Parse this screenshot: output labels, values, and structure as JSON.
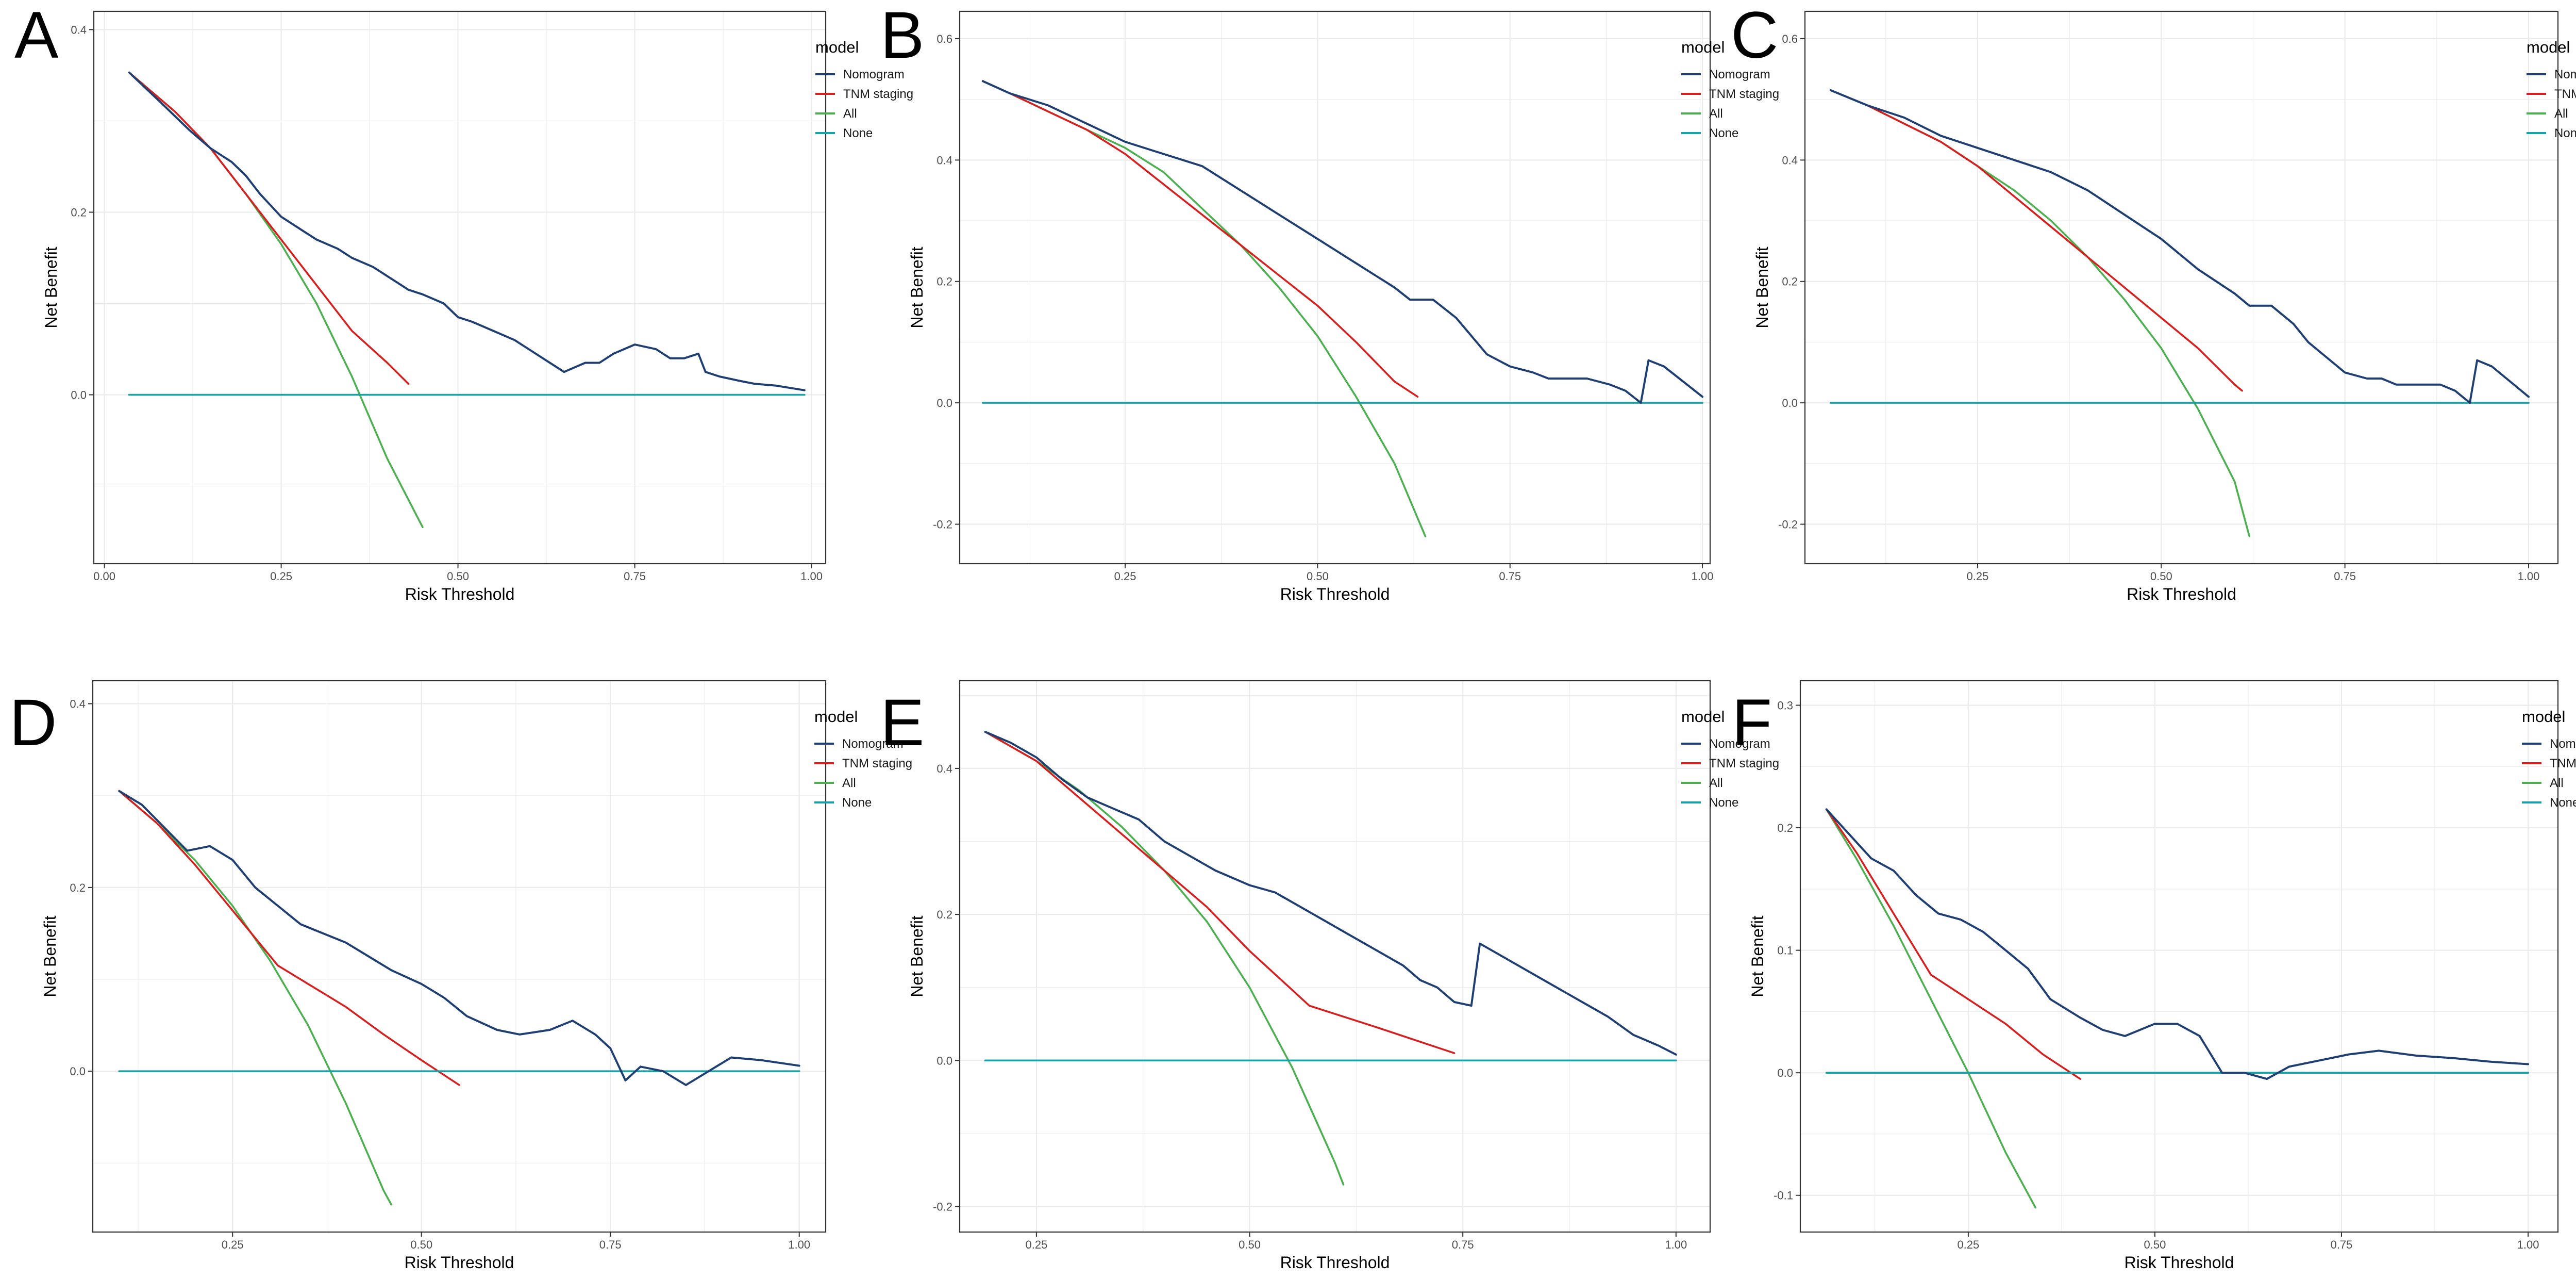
{
  "colors": {
    "Nomogram": "#1f3f73",
    "TNM staging": "#d62020",
    "All": "#4caf50",
    "None": "#17a2a8",
    "grid": "#ebebeb",
    "frame": "#333333"
  },
  "chart_data": [
    {
      "type": "line",
      "panel": "A",
      "xlabel": "Risk Threshold",
      "ylabel": "Net Benefit",
      "xlim": [
        -0.015,
        1.02
      ],
      "ylim": [
        -0.185,
        0.42
      ],
      "xticks": [
        0.0,
        0.25,
        0.5,
        0.75,
        1.0
      ],
      "xtick_labels": [
        "0.00",
        "0.25",
        "0.50",
        "0.75",
        "1.00"
      ],
      "yticks": [
        0.0,
        0.2,
        0.4
      ],
      "ytick_labels": [
        "0.0",
        "0.2",
        "0.4"
      ],
      "legend": {
        "title": "model",
        "entries": [
          "Nomogram",
          "TNM staging",
          "All",
          "None"
        ]
      },
      "series": [
        {
          "name": "Nomogram",
          "x": [
            0.035,
            0.08,
            0.12,
            0.15,
            0.18,
            0.2,
            0.22,
            0.25,
            0.28,
            0.3,
            0.33,
            0.35,
            0.38,
            0.4,
            0.43,
            0.45,
            0.48,
            0.5,
            0.52,
            0.55,
            0.58,
            0.6,
            0.62,
            0.65,
            0.68,
            0.7,
            0.72,
            0.75,
            0.78,
            0.8,
            0.82,
            0.84,
            0.85,
            0.87,
            0.9,
            0.92,
            0.95,
            0.99
          ],
          "y": [
            0.353,
            0.32,
            0.29,
            0.27,
            0.255,
            0.24,
            0.22,
            0.195,
            0.18,
            0.17,
            0.16,
            0.15,
            0.14,
            0.13,
            0.115,
            0.11,
            0.1,
            0.085,
            0.08,
            0.07,
            0.06,
            0.05,
            0.04,
            0.025,
            0.035,
            0.035,
            0.045,
            0.055,
            0.05,
            0.04,
            0.04,
            0.045,
            0.025,
            0.02,
            0.015,
            0.012,
            0.01,
            0.005
          ]
        },
        {
          "name": "TNM staging",
          "x": [
            0.035,
            0.1,
            0.15,
            0.2,
            0.25,
            0.3,
            0.35,
            0.4,
            0.43
          ],
          "y": [
            0.353,
            0.31,
            0.27,
            0.22,
            0.17,
            0.12,
            0.07,
            0.035,
            0.012
          ]
        },
        {
          "name": "All",
          "x": [
            0.035,
            0.1,
            0.15,
            0.2,
            0.25,
            0.3,
            0.35,
            0.4,
            0.45
          ],
          "y": [
            0.353,
            0.31,
            0.27,
            0.22,
            0.165,
            0.1,
            0.02,
            -0.07,
            -0.145
          ]
        },
        {
          "name": "None",
          "x": [
            0.035,
            0.99
          ],
          "y": [
            0.0,
            0.0
          ]
        }
      ]
    },
    {
      "type": "line",
      "panel": "B",
      "xlabel": "Risk Threshold",
      "ylabel": "Net Benefit",
      "xlim": [
        0.035,
        1.01
      ],
      "ylim": [
        -0.265,
        0.645
      ],
      "xticks": [
        0.25,
        0.5,
        0.75,
        1.0
      ],
      "xtick_labels": [
        "0.25",
        "0.50",
        "0.75",
        "1.00"
      ],
      "yticks": [
        -0.2,
        0.0,
        0.2,
        0.4,
        0.6
      ],
      "ytick_labels": [
        "-0.2",
        "0.0",
        "0.2",
        "0.4",
        "0.6"
      ],
      "legend": {
        "title": "model",
        "entries": [
          "Nomogram",
          "TNM staging",
          "All",
          "None"
        ]
      },
      "series": [
        {
          "name": "Nomogram",
          "x": [
            0.065,
            0.1,
            0.15,
            0.2,
            0.25,
            0.3,
            0.35,
            0.4,
            0.45,
            0.5,
            0.55,
            0.6,
            0.62,
            0.65,
            0.68,
            0.7,
            0.72,
            0.75,
            0.78,
            0.8,
            0.82,
            0.85,
            0.88,
            0.9,
            0.92,
            0.93,
            0.95,
            0.97,
            1.0
          ],
          "y": [
            0.53,
            0.51,
            0.49,
            0.46,
            0.43,
            0.41,
            0.39,
            0.35,
            0.31,
            0.27,
            0.23,
            0.19,
            0.17,
            0.17,
            0.14,
            0.11,
            0.08,
            0.06,
            0.05,
            0.04,
            0.04,
            0.04,
            0.03,
            0.02,
            0.0,
            0.07,
            0.06,
            0.04,
            0.01
          ]
        },
        {
          "name": "TNM staging",
          "x": [
            0.065,
            0.1,
            0.15,
            0.2,
            0.25,
            0.3,
            0.35,
            0.4,
            0.45,
            0.5,
            0.55,
            0.6,
            0.63
          ],
          "y": [
            0.53,
            0.51,
            0.48,
            0.45,
            0.41,
            0.36,
            0.31,
            0.26,
            0.21,
            0.16,
            0.1,
            0.035,
            0.01
          ]
        },
        {
          "name": "All",
          "x": [
            0.065,
            0.1,
            0.15,
            0.2,
            0.25,
            0.3,
            0.35,
            0.4,
            0.45,
            0.5,
            0.55,
            0.6,
            0.64
          ],
          "y": [
            0.53,
            0.51,
            0.48,
            0.45,
            0.42,
            0.38,
            0.32,
            0.26,
            0.19,
            0.11,
            0.01,
            -0.1,
            -0.22
          ]
        },
        {
          "name": "None",
          "x": [
            0.065,
            1.0
          ],
          "y": [
            0.0,
            0.0
          ]
        }
      ]
    },
    {
      "type": "line",
      "panel": "C",
      "xlabel": "Risk Threshold",
      "ylabel": "Net Benefit",
      "xlim": [
        0.015,
        1.04
      ],
      "ylim": [
        -0.265,
        0.645
      ],
      "xticks": [
        0.25,
        0.5,
        0.75,
        1.0
      ],
      "xtick_labels": [
        "0.25",
        "0.50",
        "0.75",
        "1.00"
      ],
      "yticks": [
        -0.2,
        0.0,
        0.2,
        0.4,
        0.6
      ],
      "ytick_labels": [
        "-0.2",
        "0.0",
        "0.2",
        "0.4",
        "0.6"
      ],
      "legend": {
        "title": "model",
        "entries": [
          "Nomogram",
          "TNM staging",
          "All",
          "None"
        ]
      },
      "series": [
        {
          "name": "Nomogram",
          "x": [
            0.05,
            0.1,
            0.15,
            0.2,
            0.25,
            0.3,
            0.35,
            0.4,
            0.45,
            0.5,
            0.55,
            0.6,
            0.62,
            0.65,
            0.68,
            0.7,
            0.72,
            0.75,
            0.78,
            0.8,
            0.82,
            0.85,
            0.88,
            0.9,
            0.92,
            0.93,
            0.95,
            0.97,
            1.0
          ],
          "y": [
            0.515,
            0.49,
            0.47,
            0.44,
            0.42,
            0.4,
            0.38,
            0.35,
            0.31,
            0.27,
            0.22,
            0.18,
            0.16,
            0.16,
            0.13,
            0.1,
            0.08,
            0.05,
            0.04,
            0.04,
            0.03,
            0.03,
            0.03,
            0.02,
            0.0,
            0.07,
            0.06,
            0.04,
            0.01
          ]
        },
        {
          "name": "TNM staging",
          "x": [
            0.05,
            0.1,
            0.15,
            0.2,
            0.25,
            0.3,
            0.35,
            0.4,
            0.45,
            0.5,
            0.55,
            0.6,
            0.61
          ],
          "y": [
            0.515,
            0.49,
            0.46,
            0.43,
            0.39,
            0.34,
            0.29,
            0.24,
            0.19,
            0.14,
            0.09,
            0.03,
            0.02
          ]
        },
        {
          "name": "All",
          "x": [
            0.05,
            0.1,
            0.15,
            0.2,
            0.25,
            0.3,
            0.35,
            0.4,
            0.45,
            0.5,
            0.55,
            0.6,
            0.62
          ],
          "y": [
            0.515,
            0.49,
            0.46,
            0.43,
            0.39,
            0.35,
            0.3,
            0.24,
            0.17,
            0.09,
            -0.01,
            -0.13,
            -0.22
          ]
        },
        {
          "name": "None",
          "x": [
            0.05,
            1.0
          ],
          "y": [
            0.0,
            0.0
          ]
        }
      ]
    },
    {
      "type": "line",
      "panel": "D",
      "xlabel": "Risk Threshold",
      "ylabel": "Net Benefit",
      "xlim": [
        0.065,
        1.035
      ],
      "ylim": [
        -0.175,
        0.425
      ],
      "xticks": [
        0.25,
        0.5,
        0.75,
        1.0
      ],
      "xtick_labels": [
        "0.25",
        "0.50",
        "0.75",
        "1.00"
      ],
      "yticks": [
        0.0,
        0.2,
        0.4
      ],
      "ytick_labels": [
        "0.0",
        "0.2",
        "0.4"
      ],
      "legend": {
        "title": "model",
        "entries": [
          "Nomogram",
          "TNM staging",
          "All",
          "None"
        ]
      },
      "series": [
        {
          "name": "Nomogram",
          "x": [
            0.1,
            0.13,
            0.16,
            0.19,
            0.22,
            0.25,
            0.28,
            0.31,
            0.34,
            0.37,
            0.4,
            0.43,
            0.46,
            0.5,
            0.53,
            0.56,
            0.6,
            0.63,
            0.67,
            0.7,
            0.73,
            0.75,
            0.77,
            0.79,
            0.82,
            0.85,
            0.88,
            0.91,
            0.95,
            1.0
          ],
          "y": [
            0.305,
            0.29,
            0.265,
            0.24,
            0.245,
            0.23,
            0.2,
            0.18,
            0.16,
            0.15,
            0.14,
            0.125,
            0.11,
            0.095,
            0.08,
            0.06,
            0.045,
            0.04,
            0.045,
            0.055,
            0.04,
            0.025,
            -0.01,
            0.005,
            0.0,
            -0.015,
            0.0,
            0.015,
            0.012,
            0.006
          ]
        },
        {
          "name": "TNM staging",
          "x": [
            0.1,
            0.15,
            0.2,
            0.25,
            0.31,
            0.35,
            0.4,
            0.45,
            0.5,
            0.55
          ],
          "y": [
            0.305,
            0.27,
            0.225,
            0.175,
            0.115,
            0.095,
            0.07,
            0.04,
            0.012,
            -0.015
          ]
        },
        {
          "name": "All",
          "x": [
            0.1,
            0.15,
            0.2,
            0.25,
            0.3,
            0.35,
            0.4,
            0.45,
            0.46
          ],
          "y": [
            0.305,
            0.27,
            0.23,
            0.18,
            0.12,
            0.05,
            -0.035,
            -0.13,
            -0.145
          ]
        },
        {
          "name": "None",
          "x": [
            0.1,
            1.0
          ],
          "y": [
            0.0,
            0.0
          ]
        }
      ]
    },
    {
      "type": "line",
      "panel": "E",
      "xlabel": "Risk Threshold",
      "ylabel": "Net Benefit",
      "xlim": [
        0.16,
        1.04
      ],
      "ylim": [
        -0.235,
        0.52
      ],
      "xticks": [
        0.25,
        0.5,
        0.75,
        1.0
      ],
      "xtick_labels": [
        "0.25",
        "0.50",
        "0.75",
        "1.00"
      ],
      "yticks": [
        -0.2,
        0.0,
        0.2,
        0.4
      ],
      "ytick_labels": [
        "-0.2",
        "0.0",
        "0.2",
        "0.4"
      ],
      "legend": {
        "title": "model",
        "entries": [
          "Nomogram",
          "TNM staging",
          "All",
          "None"
        ]
      },
      "series": [
        {
          "name": "Nomogram",
          "x": [
            0.19,
            0.22,
            0.25,
            0.28,
            0.31,
            0.34,
            0.37,
            0.4,
            0.43,
            0.46,
            0.5,
            0.53,
            0.56,
            0.59,
            0.62,
            0.65,
            0.68,
            0.7,
            0.72,
            0.74,
            0.76,
            0.77,
            0.8,
            0.83,
            0.86,
            0.89,
            0.92,
            0.95,
            0.98,
            1.0
          ],
          "y": [
            0.45,
            0.435,
            0.415,
            0.385,
            0.36,
            0.345,
            0.33,
            0.3,
            0.28,
            0.26,
            0.24,
            0.23,
            0.21,
            0.19,
            0.17,
            0.15,
            0.13,
            0.11,
            0.1,
            0.08,
            0.075,
            0.16,
            0.14,
            0.12,
            0.1,
            0.08,
            0.06,
            0.035,
            0.02,
            0.008
          ]
        },
        {
          "name": "TNM staging",
          "x": [
            0.19,
            0.25,
            0.3,
            0.35,
            0.4,
            0.45,
            0.5,
            0.57,
            0.65,
            0.74
          ],
          "y": [
            0.45,
            0.41,
            0.36,
            0.31,
            0.26,
            0.21,
            0.15,
            0.075,
            0.045,
            0.01
          ]
        },
        {
          "name": "All",
          "x": [
            0.19,
            0.25,
            0.3,
            0.35,
            0.4,
            0.45,
            0.5,
            0.55,
            0.6,
            0.61
          ],
          "y": [
            0.45,
            0.41,
            0.37,
            0.32,
            0.26,
            0.19,
            0.1,
            -0.01,
            -0.14,
            -0.17
          ]
        },
        {
          "name": "None",
          "x": [
            0.19,
            1.0
          ],
          "y": [
            0.0,
            0.0
          ]
        }
      ]
    },
    {
      "type": "line",
      "panel": "F",
      "xlabel": "Risk Threshold",
      "ylabel": "Net Benefit",
      "xlim": [
        0.025,
        1.04
      ],
      "ylim": [
        -0.13,
        0.32
      ],
      "xticks": [
        0.25,
        0.5,
        0.75,
        1.0
      ],
      "xtick_labels": [
        "0.25",
        "0.50",
        "0.75",
        "1.00"
      ],
      "yticks": [
        -0.1,
        0.0,
        0.1,
        0.2,
        0.3
      ],
      "ytick_labels": [
        "-0.1",
        "0.0",
        "0.1",
        "0.2",
        "0.3"
      ],
      "legend": {
        "title": "model",
        "entries": [
          "Nomogram",
          "TNM staging",
          "All",
          "None"
        ]
      },
      "series": [
        {
          "name": "Nomogram",
          "x": [
            0.06,
            0.09,
            0.12,
            0.15,
            0.18,
            0.21,
            0.24,
            0.27,
            0.3,
            0.33,
            0.36,
            0.4,
            0.43,
            0.46,
            0.5,
            0.53,
            0.56,
            0.59,
            0.62,
            0.65,
            0.68,
            0.72,
            0.76,
            0.8,
            0.85,
            0.9,
            0.95,
            1.0
          ],
          "y": [
            0.215,
            0.195,
            0.175,
            0.165,
            0.145,
            0.13,
            0.125,
            0.115,
            0.1,
            0.085,
            0.06,
            0.045,
            0.035,
            0.03,
            0.04,
            0.04,
            0.03,
            0.0,
            0.0,
            -0.005,
            0.005,
            0.01,
            0.015,
            0.018,
            0.014,
            0.012,
            0.009,
            0.007
          ]
        },
        {
          "name": "TNM staging",
          "x": [
            0.06,
            0.1,
            0.15,
            0.2,
            0.25,
            0.3,
            0.35,
            0.4
          ],
          "y": [
            0.215,
            0.18,
            0.13,
            0.08,
            0.06,
            0.04,
            0.015,
            -0.005
          ]
        },
        {
          "name": "All",
          "x": [
            0.06,
            0.1,
            0.15,
            0.2,
            0.25,
            0.3,
            0.34
          ],
          "y": [
            0.215,
            0.175,
            0.12,
            0.06,
            0.0,
            -0.065,
            -0.11
          ]
        },
        {
          "name": "None",
          "x": [
            0.06,
            1.0
          ],
          "y": [
            0.0,
            0.0
          ]
        }
      ]
    }
  ]
}
